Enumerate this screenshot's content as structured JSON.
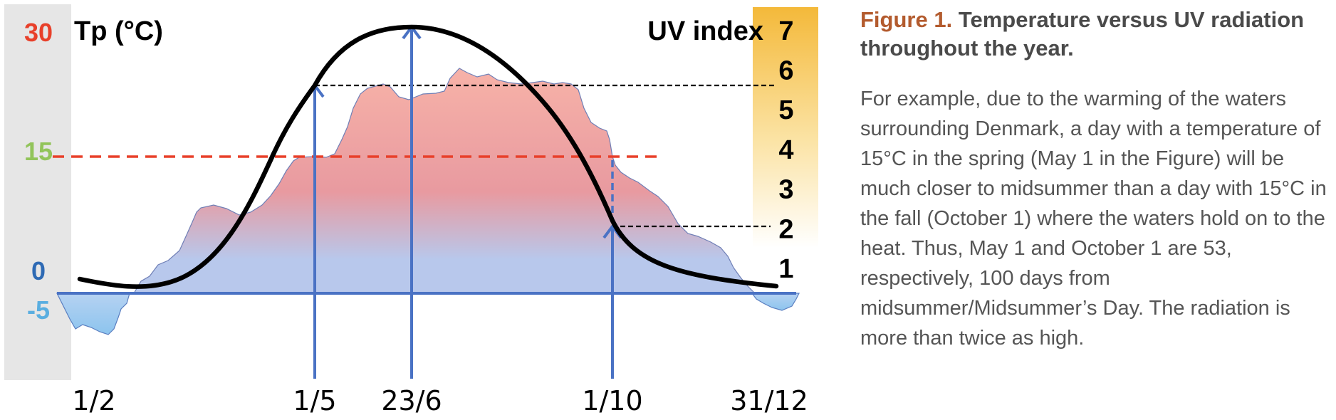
{
  "caption": {
    "figure_number": "Figure 1.",
    "title": "Temperature versus UV radiation throughout the year.",
    "body": "For example, due to the warming of the waters surrounding Denmark, a day with a temperature of 15°C in the spring (May 1 in the Figure) will be much closer to midsummer than a day with 15°C in the fall (October 1) where the waters hold on to the heat. Thus, May 1 and October 1 are 53, respectively, 100 days from midsummer/Midsummer’s Day. The radiation is more than twice as high."
  },
  "chart_data": {
    "type": "area",
    "left_axis": {
      "label": "Tp (°C)",
      "ticks": [
        {
          "value": 30,
          "label": "30",
          "color": "#e8402a"
        },
        {
          "value": 15,
          "label": "15",
          "color": "#92c45a"
        },
        {
          "value": 0,
          "label": "0",
          "color": "#2e6ab4"
        },
        {
          "value": -5,
          "label": "-5",
          "color": "#5aaee0"
        }
      ],
      "range": [
        -5,
        30
      ]
    },
    "right_axis": {
      "label": "UV index",
      "ticks": [
        1,
        2,
        3,
        4,
        5,
        6,
        7
      ],
      "range": [
        1,
        7
      ]
    },
    "x_ticks": [
      "1/2",
      "1/5",
      "23/6",
      "1/10",
      "31/12"
    ],
    "temperature_area": {
      "x": [
        "1/2",
        "1/5",
        "23/6",
        "1/10",
        "31/12"
      ],
      "values": [
        -5,
        15,
        24,
        15,
        -1
      ]
    },
    "uv_curve": {
      "x": [
        "1/2",
        "1/5",
        "23/6",
        "1/10",
        "31/12"
      ],
      "values": [
        1,
        6,
        7,
        2,
        1
      ]
    },
    "reference_lines": [
      {
        "axis": "left",
        "value": 15,
        "style": "dashed",
        "color": "#e8402a"
      },
      {
        "axis": "right",
        "value": 6,
        "style": "dashed",
        "color": "#000000"
      },
      {
        "axis": "right",
        "value": 2,
        "style": "dashed",
        "color": "#000000"
      }
    ],
    "markers": [
      "1/5",
      "23/6",
      "1/10"
    ],
    "colors": {
      "temp_warm": "#f2a59c",
      "temp_cold": "#b8c8ec",
      "axis": "#4a72c4",
      "uv_curve": "#000000",
      "uv_bar_top": "#f4b93a"
    }
  }
}
